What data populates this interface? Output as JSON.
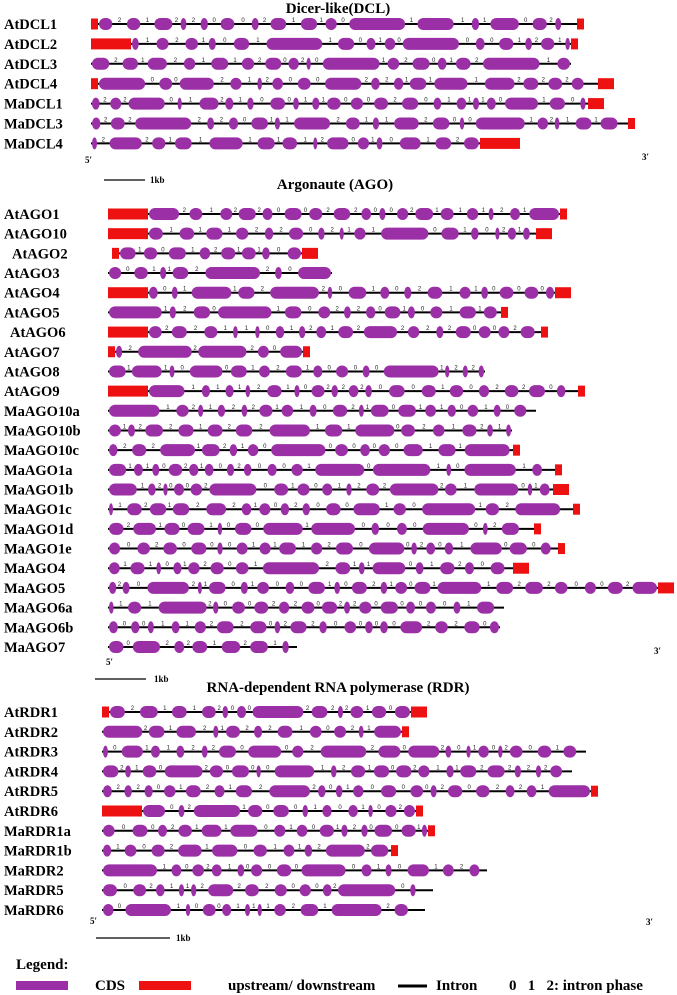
{
  "colors": {
    "cds": "#9b2fa6",
    "cds_stroke": "#7a1f85",
    "utr": "#ee1111",
    "intron": "#000000",
    "text": "#000000"
  },
  "sections": [
    {
      "id": "dcl",
      "title": "Dicer-like(DCL)",
      "five_prime": "5′",
      "three_prime": "3′",
      "scale_label": "1kb",
      "genes": [
        {
          "name": "AtDCL1",
          "up": "short",
          "down": "short"
        },
        {
          "name": "AtDCL2",
          "up": "long",
          "down": "short"
        },
        {
          "name": "AtDCL3",
          "up": "none",
          "down": "none"
        },
        {
          "name": "AtDCL4",
          "up": "short",
          "down": "medium"
        },
        {
          "name": "MaDCL1",
          "up": "none",
          "down": "medium"
        },
        {
          "name": "MaDCL3",
          "up": "none",
          "down": "short"
        },
        {
          "name": "MaDCL4",
          "up": "none",
          "down": "long"
        }
      ]
    },
    {
      "id": "ago",
      "title": "Argonaute (AGO)",
      "five_prime": "5′",
      "three_prime": "3′",
      "scale_label": "1kb",
      "genes": [
        {
          "name": "AtAGO1",
          "up": "long",
          "down": "short"
        },
        {
          "name": "AtAGO10",
          "up": "long",
          "down": "medium"
        },
        {
          "name": "AtAGO2",
          "up": "short",
          "down": "medium"
        },
        {
          "name": "AtAGO3",
          "up": "none",
          "down": "none"
        },
        {
          "name": "AtAGO4",
          "up": "long",
          "down": "medium"
        },
        {
          "name": "AtAGO5",
          "up": "none",
          "down": "short"
        },
        {
          "name": "AtAGO6",
          "up": "long",
          "down": "short"
        },
        {
          "name": "AtAGO7",
          "up": "short",
          "down": "short"
        },
        {
          "name": "AtAGO8",
          "up": "none",
          "down": "none"
        },
        {
          "name": "AtAGO9",
          "up": "long",
          "down": "short"
        },
        {
          "name": "MaAGO10a",
          "up": "none",
          "down": "none"
        },
        {
          "name": "MaAGO10b",
          "up": "none",
          "down": "none"
        },
        {
          "name": "MaAGO10c",
          "up": "none",
          "down": "short"
        },
        {
          "name": "MaAGO1a",
          "up": "none",
          "down": "short"
        },
        {
          "name": "MaAGO1b",
          "up": "none",
          "down": "medium"
        },
        {
          "name": "MaAGO1c",
          "up": "none",
          "down": "short"
        },
        {
          "name": "MaAGO1d",
          "up": "none",
          "down": "short"
        },
        {
          "name": "MaAGO1e",
          "up": "none",
          "down": "short"
        },
        {
          "name": "MaAGO4",
          "up": "none",
          "down": "medium"
        },
        {
          "name": "MaAGO5",
          "up": "none",
          "down": "medium"
        },
        {
          "name": "MaAGO6a",
          "up": "none",
          "down": "none"
        },
        {
          "name": "MaAGO6b",
          "up": "none",
          "down": "none"
        },
        {
          "name": "MaAGO7",
          "up": "none",
          "down": "none"
        }
      ]
    },
    {
      "id": "rdr",
      "title": "RNA-dependent RNA polymerase (RDR)",
      "five_prime": "5′",
      "three_prime": "3′",
      "scale_label": "1kb",
      "genes": [
        {
          "name": "AtRDR1",
          "up": "short",
          "down": "medium"
        },
        {
          "name": "AtRDR2",
          "up": "none",
          "down": "short"
        },
        {
          "name": "AtRDR3",
          "up": "none",
          "down": "none"
        },
        {
          "name": "AtRDR4",
          "up": "none",
          "down": "none"
        },
        {
          "name": "AtRDR5",
          "up": "none",
          "down": "short"
        },
        {
          "name": "AtRDR6",
          "up": "long",
          "down": "short"
        },
        {
          "name": "MaRDR1a",
          "up": "none",
          "down": "short"
        },
        {
          "name": "MaRDR1b",
          "up": "none",
          "down": "short"
        },
        {
          "name": "MaRDR2",
          "up": "none",
          "down": "none"
        },
        {
          "name": "MaRDR5",
          "up": "none",
          "down": "none"
        },
        {
          "name": "MaRDR6",
          "up": "none",
          "down": "none"
        }
      ]
    }
  ],
  "legend": {
    "title": "Legend:",
    "cds": "CDS",
    "utr": "upstream/ downstream",
    "intron": "Intron",
    "phase": "0   1   2: intron phase"
  }
}
